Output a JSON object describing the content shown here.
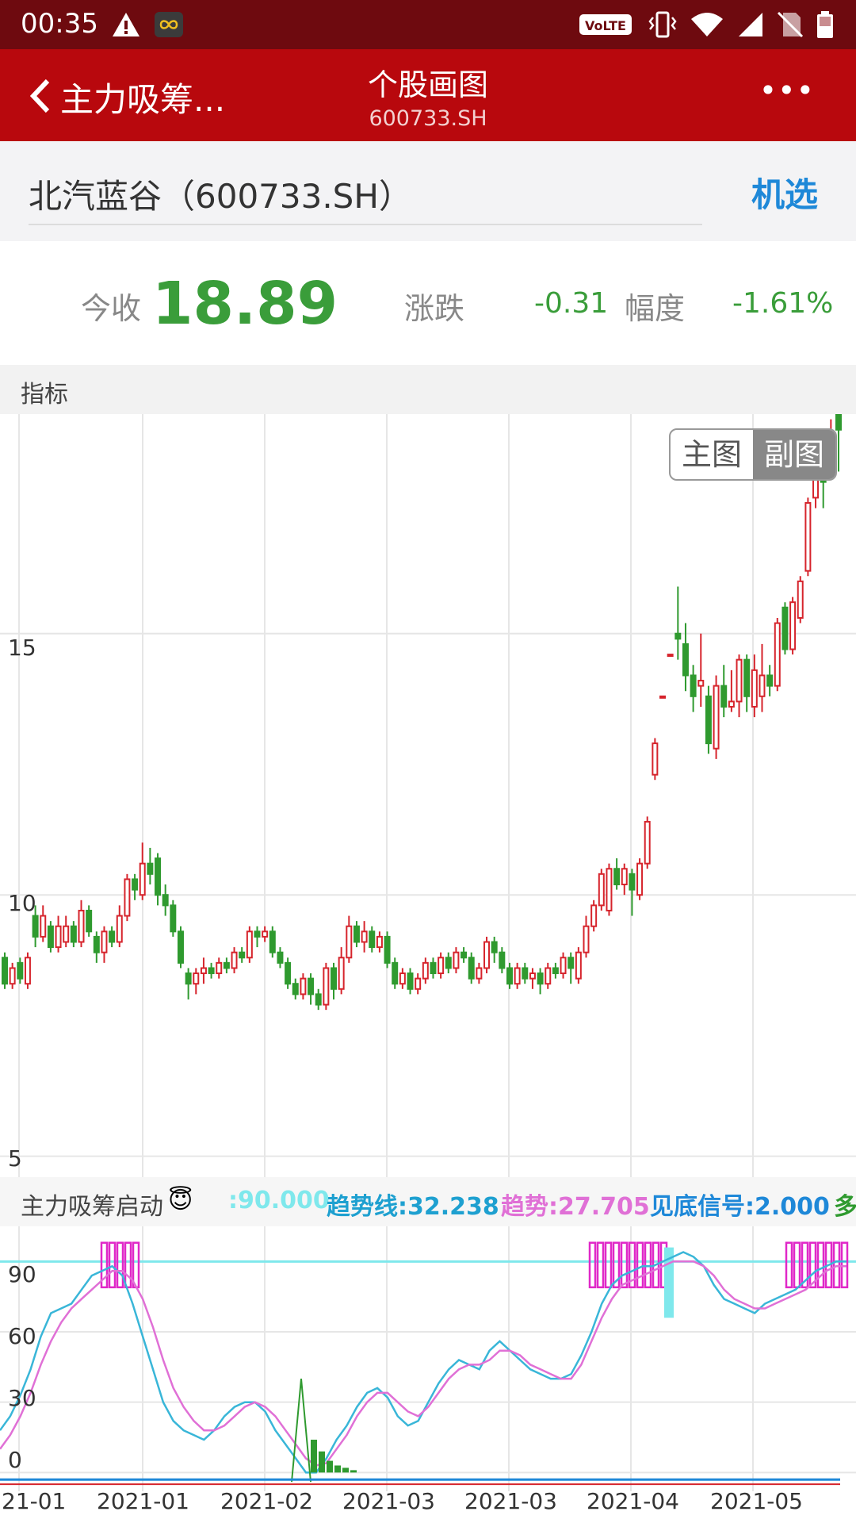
{
  "status_bar": {
    "time": "00:35",
    "network_badge": "VoLTE",
    "icons": [
      "alert-icon",
      "infinity-app-icon",
      "volte-icon",
      "vibrate-icon",
      "wifi-icon",
      "signal-icon",
      "no-sim-icon",
      "battery-icon"
    ]
  },
  "app_bar": {
    "back_label": "主力吸筹...",
    "title": "个股画图",
    "subtitle": "600733.SH",
    "more_label": "•••"
  },
  "stock": {
    "name": "北汽蓝谷（600733.SH）",
    "action": "机选"
  },
  "quote": {
    "close_label": "今收",
    "close": "18.89",
    "change_label": "涨跌",
    "change": "-0.31",
    "pct_label": "幅度",
    "pct": "-1.61%"
  },
  "indicator_header": "指标",
  "toggle": {
    "main": "主图",
    "sub": "副图"
  },
  "sub_header": {
    "name": "主力吸筹启动",
    "v1": ":90.000",
    "v2": "趋势线:32.238",
    "v3": "趋势:27.705",
    "v4": "见底信号:2.000",
    "v5": "多"
  },
  "colors": {
    "up": "#d6242c",
    "down": "#2f9a2f",
    "cyan": "#39b6d8",
    "pink": "#e070d6",
    "magenta": "#e028c8",
    "level": "#7fe8ec"
  },
  "chart_data": [
    {
      "type": "candlestick",
      "y_ticks": [
        "15",
        "10",
        "5"
      ],
      "ylim": [
        4.6,
        19.2
      ],
      "x_ticks": [
        "21-01",
        "2021-01",
        "2021-02",
        "2021-03",
        "2021-03",
        "2021-04",
        "2021-05"
      ],
      "candles": [
        {
          "o": 8.8,
          "c": 8.3,
          "h": 8.9,
          "l": 8.2
        },
        {
          "o": 8.3,
          "c": 8.6,
          "h": 8.7,
          "l": 8.2
        },
        {
          "o": 8.7,
          "c": 8.4,
          "h": 8.8,
          "l": 8.3
        },
        {
          "o": 8.3,
          "c": 8.8,
          "h": 8.9,
          "l": 8.2
        },
        {
          "o": 9.6,
          "c": 9.2,
          "h": 9.8,
          "l": 9.0
        },
        {
          "o": 9.2,
          "c": 9.6,
          "h": 9.8,
          "l": 9.1
        },
        {
          "o": 9.4,
          "c": 9.0,
          "h": 9.5,
          "l": 8.9
        },
        {
          "o": 9.0,
          "c": 9.4,
          "h": 9.6,
          "l": 8.9
        },
        {
          "o": 9.1,
          "c": 9.4,
          "h": 9.6,
          "l": 9.0
        },
        {
          "o": 9.4,
          "c": 9.1,
          "h": 9.5,
          "l": 9.0
        },
        {
          "o": 9.1,
          "c": 9.7,
          "h": 9.9,
          "l": 9.0
        },
        {
          "o": 9.7,
          "c": 9.3,
          "h": 9.8,
          "l": 9.2
        },
        {
          "o": 9.2,
          "c": 8.9,
          "h": 9.3,
          "l": 8.7
        },
        {
          "o": 8.9,
          "c": 9.3,
          "h": 9.4,
          "l": 8.7
        },
        {
          "o": 9.3,
          "c": 9.1,
          "h": 9.4,
          "l": 9.0
        },
        {
          "o": 9.1,
          "c": 9.6,
          "h": 9.8,
          "l": 9.0
        },
        {
          "o": 9.6,
          "c": 10.3,
          "h": 10.4,
          "l": 9.5
        },
        {
          "o": 10.3,
          "c": 10.1,
          "h": 10.4,
          "l": 9.9
        },
        {
          "o": 10.0,
          "c": 10.6,
          "h": 11.0,
          "l": 9.9
        },
        {
          "o": 10.6,
          "c": 10.4,
          "h": 10.9,
          "l": 10.2
        },
        {
          "o": 10.7,
          "c": 10.0,
          "h": 10.8,
          "l": 9.8
        },
        {
          "o": 10.0,
          "c": 9.8,
          "h": 10.2,
          "l": 9.6
        },
        {
          "o": 9.8,
          "c": 9.3,
          "h": 9.9,
          "l": 9.2
        },
        {
          "o": 9.3,
          "c": 8.7,
          "h": 9.4,
          "l": 8.6
        },
        {
          "o": 8.5,
          "c": 8.3,
          "h": 8.6,
          "l": 8.0
        },
        {
          "o": 8.3,
          "c": 8.5,
          "h": 8.6,
          "l": 8.1
        },
        {
          "o": 8.5,
          "c": 8.6,
          "h": 8.8,
          "l": 8.3
        },
        {
          "o": 8.6,
          "c": 8.5,
          "h": 8.7,
          "l": 8.4
        },
        {
          "o": 8.5,
          "c": 8.7,
          "h": 8.8,
          "l": 8.4
        },
        {
          "o": 8.7,
          "c": 8.6,
          "h": 8.8,
          "l": 8.5
        },
        {
          "o": 8.6,
          "c": 8.9,
          "h": 9.0,
          "l": 8.5
        },
        {
          "o": 8.9,
          "c": 8.8,
          "h": 9.0,
          "l": 8.7
        },
        {
          "o": 8.8,
          "c": 9.3,
          "h": 9.4,
          "l": 8.7
        },
        {
          "o": 9.3,
          "c": 9.2,
          "h": 9.4,
          "l": 9.0
        },
        {
          "o": 9.2,
          "c": 9.3,
          "h": 9.4,
          "l": 9.1
        },
        {
          "o": 9.3,
          "c": 8.9,
          "h": 9.4,
          "l": 8.8
        },
        {
          "o": 8.9,
          "c": 8.7,
          "h": 9.0,
          "l": 8.6
        },
        {
          "o": 8.7,
          "c": 8.3,
          "h": 8.8,
          "l": 8.2
        },
        {
          "o": 8.3,
          "c": 8.1,
          "h": 8.4,
          "l": 8.0
        },
        {
          "o": 8.1,
          "c": 8.4,
          "h": 8.5,
          "l": 8.0
        },
        {
          "o": 8.4,
          "c": 8.1,
          "h": 8.5,
          "l": 7.9
        },
        {
          "o": 8.1,
          "c": 7.9,
          "h": 8.2,
          "l": 7.8
        },
        {
          "o": 7.9,
          "c": 8.6,
          "h": 8.7,
          "l": 7.8
        },
        {
          "o": 8.6,
          "c": 8.2,
          "h": 8.7,
          "l": 8.0
        },
        {
          "o": 8.2,
          "c": 8.8,
          "h": 9.0,
          "l": 8.1
        },
        {
          "o": 8.8,
          "c": 9.4,
          "h": 9.6,
          "l": 8.7
        },
        {
          "o": 9.4,
          "c": 9.1,
          "h": 9.5,
          "l": 9.0
        },
        {
          "o": 9.1,
          "c": 9.3,
          "h": 9.5,
          "l": 8.9
        },
        {
          "o": 9.3,
          "c": 9.0,
          "h": 9.4,
          "l": 8.9
        },
        {
          "o": 9.0,
          "c": 9.2,
          "h": 9.3,
          "l": 8.9
        },
        {
          "o": 9.2,
          "c": 8.7,
          "h": 9.3,
          "l": 8.6
        },
        {
          "o": 8.7,
          "c": 8.3,
          "h": 8.8,
          "l": 8.2
        },
        {
          "o": 8.3,
          "c": 8.5,
          "h": 8.6,
          "l": 8.2
        },
        {
          "o": 8.5,
          "c": 8.2,
          "h": 8.6,
          "l": 8.1
        },
        {
          "o": 8.2,
          "c": 8.4,
          "h": 8.5,
          "l": 8.1
        },
        {
          "o": 8.4,
          "c": 8.7,
          "h": 8.8,
          "l": 8.3
        },
        {
          "o": 8.7,
          "c": 8.5,
          "h": 8.8,
          "l": 8.4
        },
        {
          "o": 8.5,
          "c": 8.8,
          "h": 8.9,
          "l": 8.4
        },
        {
          "o": 8.8,
          "c": 8.6,
          "h": 8.9,
          "l": 8.5
        },
        {
          "o": 8.6,
          "c": 8.9,
          "h": 9.0,
          "l": 8.5
        },
        {
          "o": 8.9,
          "c": 8.8,
          "h": 9.0,
          "l": 8.7
        },
        {
          "o": 8.8,
          "c": 8.4,
          "h": 8.9,
          "l": 8.3
        },
        {
          "o": 8.4,
          "c": 8.6,
          "h": 8.7,
          "l": 8.3
        },
        {
          "o": 8.6,
          "c": 9.1,
          "h": 9.2,
          "l": 8.5
        },
        {
          "o": 9.1,
          "c": 8.9,
          "h": 9.2,
          "l": 8.7
        },
        {
          "o": 8.9,
          "c": 8.6,
          "h": 9.0,
          "l": 8.5
        },
        {
          "o": 8.6,
          "c": 8.3,
          "h": 8.7,
          "l": 8.2
        },
        {
          "o": 8.3,
          "c": 8.6,
          "h": 8.7,
          "l": 8.2
        },
        {
          "o": 8.6,
          "c": 8.4,
          "h": 8.7,
          "l": 8.3
        },
        {
          "o": 8.4,
          "c": 8.5,
          "h": 8.6,
          "l": 8.2
        },
        {
          "o": 8.5,
          "c": 8.3,
          "h": 8.6,
          "l": 8.1
        },
        {
          "o": 8.3,
          "c": 8.6,
          "h": 8.7,
          "l": 8.2
        },
        {
          "o": 8.6,
          "c": 8.5,
          "h": 8.7,
          "l": 8.4
        },
        {
          "o": 8.5,
          "c": 8.8,
          "h": 8.9,
          "l": 8.4
        },
        {
          "o": 8.8,
          "c": 8.6,
          "h": 8.9,
          "l": 8.3
        },
        {
          "o": 8.4,
          "c": 8.9,
          "h": 9.0,
          "l": 8.3
        },
        {
          "o": 8.9,
          "c": 9.4,
          "h": 9.6,
          "l": 8.8
        },
        {
          "o": 9.4,
          "c": 9.8,
          "h": 9.9,
          "l": 9.3
        },
        {
          "o": 9.8,
          "c": 10.4,
          "h": 10.5,
          "l": 9.7
        },
        {
          "o": 9.7,
          "c": 10.5,
          "h": 10.6,
          "l": 9.6
        },
        {
          "o": 10.5,
          "c": 10.2,
          "h": 10.7,
          "l": 10.1
        },
        {
          "o": 10.2,
          "c": 10.5,
          "h": 10.6,
          "l": 10.0
        },
        {
          "o": 10.4,
          "c": 10.1,
          "h": 10.5,
          "l": 9.6
        },
        {
          "o": 10.0,
          "c": 10.6,
          "h": 10.7,
          "l": 9.9
        },
        {
          "o": 10.6,
          "c": 11.4,
          "h": 11.5,
          "l": 10.5
        },
        {
          "o": 12.3,
          "c": 12.9,
          "h": 13.0,
          "l": 12.2
        },
        {
          "o": 13.8,
          "c": 13.8,
          "h": 13.8,
          "l": 13.8
        },
        {
          "o": 14.6,
          "c": 14.6,
          "h": 14.6,
          "l": 14.6
        },
        {
          "o": 15.0,
          "c": 14.9,
          "h": 15.9,
          "l": 14.5
        },
        {
          "o": 14.8,
          "c": 14.2,
          "h": 15.2,
          "l": 13.9
        },
        {
          "o": 14.2,
          "c": 13.8,
          "h": 14.4,
          "l": 13.5
        },
        {
          "o": 14.0,
          "c": 14.1,
          "h": 15.0,
          "l": 13.6
        },
        {
          "o": 13.8,
          "c": 12.9,
          "h": 14.0,
          "l": 12.7
        },
        {
          "o": 12.8,
          "c": 14.0,
          "h": 14.2,
          "l": 12.6
        },
        {
          "o": 14.0,
          "c": 13.6,
          "h": 14.4,
          "l": 13.4
        },
        {
          "o": 13.6,
          "c": 13.7,
          "h": 14.3,
          "l": 13.5
        },
        {
          "o": 13.7,
          "c": 14.5,
          "h": 14.6,
          "l": 13.4
        },
        {
          "o": 14.5,
          "c": 13.8,
          "h": 14.6,
          "l": 13.5
        },
        {
          "o": 13.6,
          "c": 14.3,
          "h": 14.6,
          "l": 13.4
        },
        {
          "o": 13.8,
          "c": 14.2,
          "h": 14.8,
          "l": 13.5
        },
        {
          "o": 14.2,
          "c": 14.0,
          "h": 14.4,
          "l": 13.8
        },
        {
          "o": 14.0,
          "c": 15.2,
          "h": 15.3,
          "l": 13.9
        },
        {
          "o": 15.5,
          "c": 14.7,
          "h": 15.6,
          "l": 14.6
        },
        {
          "o": 14.7,
          "c": 15.6,
          "h": 15.7,
          "l": 14.6
        },
        {
          "o": 15.3,
          "c": 16.0,
          "h": 16.1,
          "l": 15.2
        },
        {
          "o": 16.2,
          "c": 17.5,
          "h": 17.6,
          "l": 16.1
        },
        {
          "o": 17.6,
          "c": 18.2,
          "h": 18.4,
          "l": 17.4
        },
        {
          "o": 18.2,
          "c": 17.9,
          "h": 18.4,
          "l": 17.4
        },
        {
          "o": 18.3,
          "c": 18.8,
          "h": 19.1,
          "l": 18.2
        },
        {
          "o": 19.2,
          "c": 18.9,
          "h": 19.4,
          "l": 18.1
        }
      ]
    },
    {
      "type": "line",
      "y_ticks": [
        "90",
        "60",
        "30",
        "0"
      ],
      "ylim": [
        -8,
        105
      ],
      "level": 90,
      "series": [
        {
          "color": "cyan",
          "values": [
            18,
            24,
            33,
            44,
            58,
            68,
            70,
            72,
            78,
            84,
            86,
            88,
            84,
            72,
            58,
            44,
            30,
            22,
            18,
            16,
            14,
            18,
            24,
            28,
            30,
            30,
            26,
            18,
            12,
            6,
            0,
            0,
            6,
            14,
            20,
            28,
            34,
            36,
            32,
            24,
            20,
            22,
            30,
            38,
            44,
            48,
            46,
            44,
            52,
            56,
            52,
            48,
            44,
            42,
            40,
            40,
            42,
            50,
            60,
            72,
            80,
            84,
            86,
            88,
            88,
            90,
            92,
            94,
            92,
            88,
            80,
            74,
            72,
            70,
            68,
            72,
            74,
            76,
            78,
            82,
            86,
            88,
            90,
            90
          ]
        },
        {
          "color": "pink",
          "values": [
            10,
            16,
            24,
            34,
            46,
            56,
            64,
            70,
            74,
            78,
            82,
            86,
            86,
            82,
            74,
            62,
            48,
            36,
            28,
            22,
            18,
            18,
            20,
            24,
            28,
            30,
            28,
            24,
            18,
            12,
            6,
            3,
            4,
            10,
            16,
            24,
            30,
            34,
            34,
            30,
            26,
            24,
            28,
            34,
            40,
            44,
            46,
            46,
            48,
            52,
            52,
            50,
            46,
            44,
            42,
            40,
            40,
            46,
            56,
            66,
            74,
            80,
            82,
            84,
            86,
            88,
            90,
            90,
            90,
            88,
            84,
            78,
            74,
            72,
            70,
            70,
            72,
            74,
            76,
            78,
            82,
            86,
            88,
            88
          ]
        }
      ]
    }
  ]
}
